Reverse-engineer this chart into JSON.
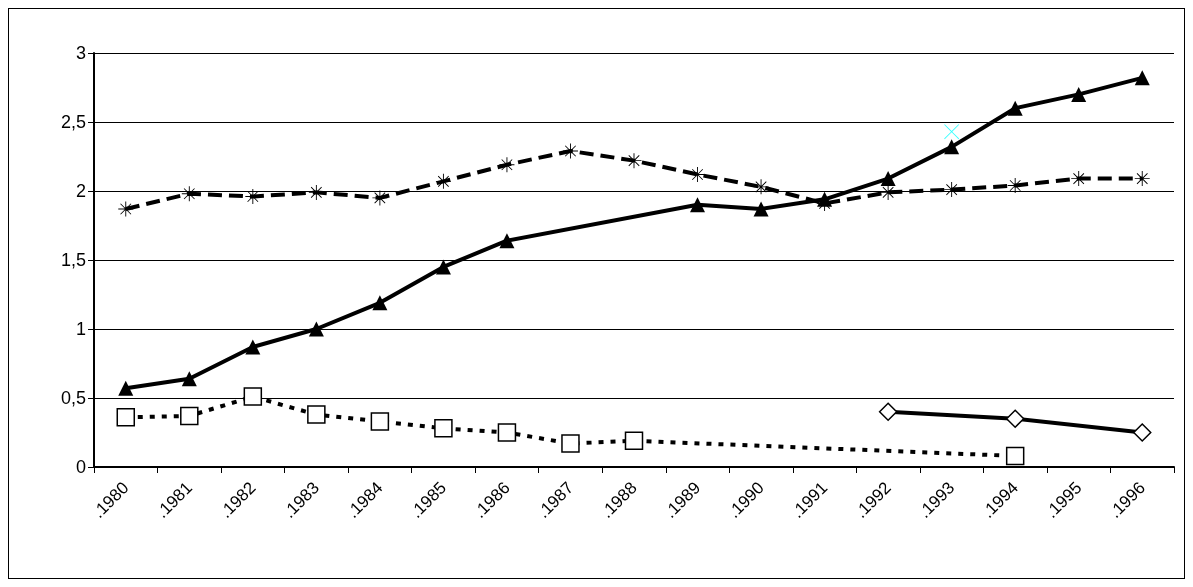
{
  "chart_data": {
    "type": "line",
    "categories": [
      ".1980",
      ".1981",
      ".1982",
      ".1983",
      ".1984",
      ".1985",
      ".1986",
      ".1987",
      ".1988",
      ".1989",
      ".1990",
      ".1991",
      ".1992",
      ".1993",
      ".1994",
      ".1995",
      ".1996"
    ],
    "series": [
      {
        "color": "#000000",
        "marker": "triangle",
        "line_style": "solid",
        "values": [
          0.57,
          0.64,
          0.87,
          1.0,
          1.19,
          1.45,
          1.64,
          null,
          null,
          1.9,
          1.87,
          1.94,
          2.09,
          2.32,
          2.6,
          2.7,
          2.82
        ]
      },
      {
        "color": "#000000",
        "marker": "star",
        "line_style": "dashed",
        "values": [
          1.87,
          1.98,
          1.96,
          1.99,
          1.95,
          2.07,
          2.19,
          2.29,
          2.22,
          2.12,
          2.03,
          1.91,
          1.99,
          2.01,
          2.04,
          2.09,
          2.09
        ]
      },
      {
        "color": "#000000",
        "marker": "square",
        "line_style": "dotted",
        "values": [
          0.36,
          0.37,
          0.51,
          0.38,
          0.33,
          0.28,
          0.25,
          0.17,
          0.19,
          null,
          null,
          null,
          null,
          null,
          0.08,
          null,
          null
        ]
      },
      {
        "color": "#000000",
        "marker": "diamond",
        "line_style": "solid",
        "values": [
          null,
          null,
          null,
          null,
          null,
          null,
          null,
          null,
          null,
          null,
          null,
          null,
          0.4,
          null,
          0.35,
          null,
          0.25
        ]
      },
      {
        "type": "scatter",
        "color": "#00ffff",
        "marker": "cross",
        "values": [
          null,
          null,
          null,
          null,
          null,
          null,
          null,
          null,
          null,
          null,
          null,
          null,
          null,
          2.43,
          null,
          null,
          null
        ]
      }
    ],
    "ylim": [
      0,
      3
    ],
    "yticks": [
      0,
      {
        "value": 0.5,
        "label": "0,5"
      },
      1,
      {
        "value": 1.5,
        "label": "1,5"
      },
      2,
      {
        "value": 2.5,
        "label": "2,5"
      },
      3
    ],
    "grid": "y"
  }
}
